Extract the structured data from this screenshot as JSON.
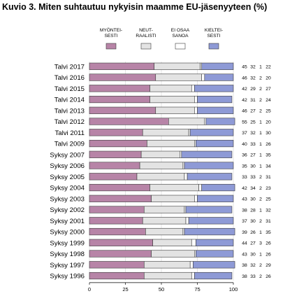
{
  "chart_data": {
    "type": "bar",
    "stacked": true,
    "orientation": "horizontal",
    "title": "Kuvio 3. Miten suhtautuu nykyisin maamme EU-jäsenyyteen (%)",
    "legend_placement": "top",
    "xlim": [
      0,
      100
    ],
    "xticks": [
      "0",
      "25",
      "50",
      "75",
      "100"
    ],
    "categories": [
      "Talvi 2017",
      "Talvi 2016",
      "Talvi 2015",
      "Talvi 2014",
      "Talvi 2013",
      "Talvi 2012",
      "Talvi 2011",
      "Talvi 2009",
      "Syksy 2007",
      "Syksy 2006",
      "Syksy 2005",
      "Syksy 2004",
      "Syksy 2003",
      "Syksy 2002",
      "Syksy 2001",
      "Syksy 2000",
      "Syksy 1999",
      "Syksy 1998",
      "Syksy 1997",
      "Syksy 1996"
    ],
    "series": [
      {
        "name": "MYÖNTEI-\nSESTI",
        "color": "#b784a7",
        "values": [
          45,
          46,
          42,
          42,
          46,
          55,
          37,
          40,
          36,
          35,
          33,
          42,
          43,
          38,
          37,
          39,
          44,
          43,
          38,
          38
        ]
      },
      {
        "name": "NEUT-\nRAALISTI",
        "color": "#e3e3e3",
        "values": [
          32,
          32,
          29,
          31,
          27,
          25,
          32,
          33,
          27,
          30,
          33,
          34,
          30,
          28,
          30,
          26,
          27,
          30,
          32,
          33
        ]
      },
      {
        "name": "EI OSAA\nSANOA",
        "color": "#ffffff",
        "values": [
          1,
          2,
          2,
          2,
          2,
          1,
          1,
          1,
          1,
          1,
          2,
          2,
          2,
          1,
          2,
          1,
          3,
          1,
          2,
          2
        ]
      },
      {
        "name": "KIELTEI-\nSESTI",
        "color": "#8e9ad6",
        "values": [
          22,
          20,
          27,
          24,
          25,
          20,
          30,
          26,
          35,
          34,
          31,
          23,
          25,
          32,
          31,
          35,
          26,
          26,
          29,
          26
        ]
      }
    ]
  }
}
